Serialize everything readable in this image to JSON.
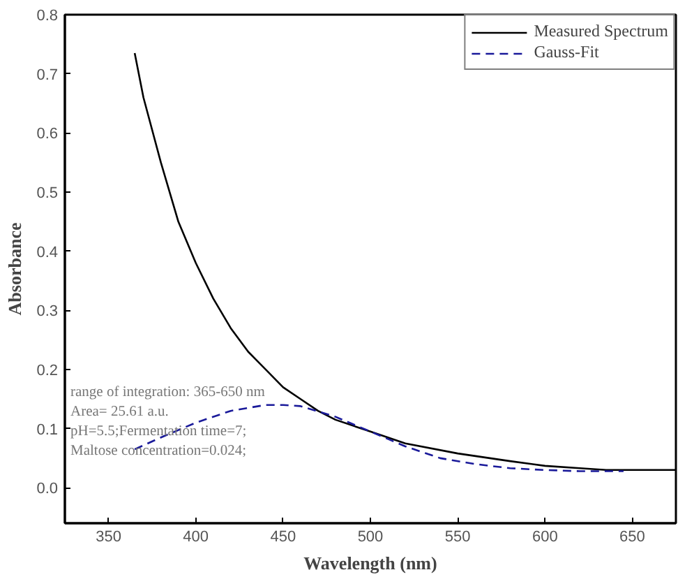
{
  "chart_data": {
    "type": "line",
    "xlabel": "Wavelength (nm)",
    "ylabel": "Absorbance",
    "xlim": [
      325,
      675
    ],
    "ylim": [
      -0.06,
      0.8
    ],
    "xticks": [
      350,
      400,
      450,
      500,
      550,
      600,
      650
    ],
    "yticks": [
      {
        "value": 0,
        "label": "0.0"
      },
      0.1,
      0.2,
      0.3,
      0.4,
      0.5,
      0.6,
      0.7,
      0.8
    ],
    "grid": false,
    "legend": "top right",
    "marker": "none",
    "series": [
      {
        "name": "Measured Spectrum",
        "color": "#000000",
        "line_style": "solid",
        "x": [
          365,
          370,
          380,
          390,
          400,
          410,
          420,
          430,
          440,
          450,
          460,
          470,
          480,
          500,
          520,
          550,
          580,
          600,
          620,
          635,
          675
        ],
        "values": [
          0.735,
          0.66,
          0.55,
          0.45,
          0.38,
          0.32,
          0.27,
          0.23,
          0.2,
          0.17,
          0.15,
          0.13,
          0.115,
          0.095,
          0.075,
          0.058,
          0.045,
          0.037,
          0.033,
          0.03,
          0.03
        ]
      },
      {
        "name": "Gauss-Fit",
        "color": "#1a1a9a",
        "line_style": "dashed",
        "x": [
          365,
          380,
          400,
          420,
          440,
          450,
          460,
          480,
          500,
          520,
          540,
          560,
          580,
          600,
          620,
          645
        ],
        "values": [
          0.065,
          0.085,
          0.11,
          0.13,
          0.14,
          0.14,
          0.138,
          0.12,
          0.095,
          0.07,
          0.05,
          0.04,
          0.033,
          0.03,
          0.028,
          0.028
        ]
      }
    ],
    "annotations": [
      "range of integration: 365-650 nm",
      "Area= 25.61 a.u.",
      "pH=5.5;Fermentation time=7;",
      "Maltose concentration=0.024;"
    ]
  }
}
